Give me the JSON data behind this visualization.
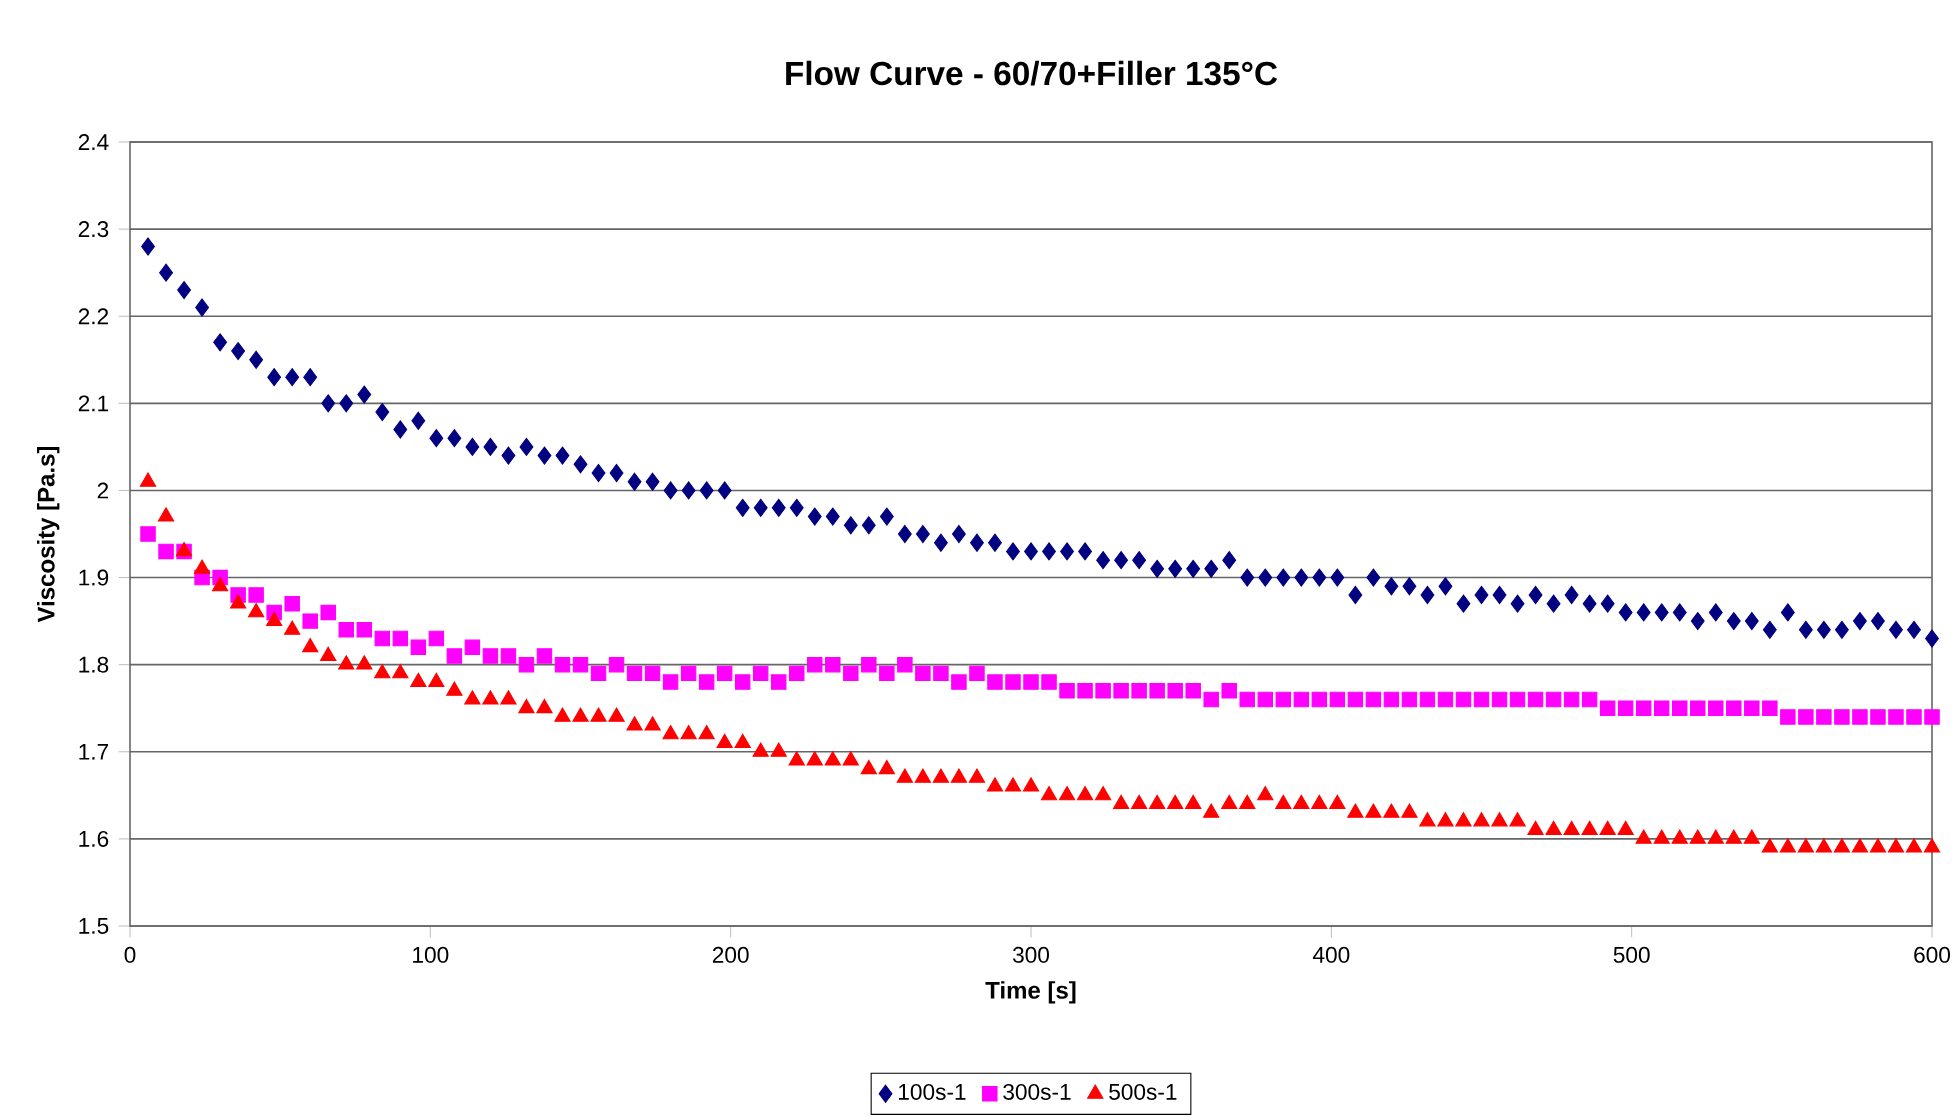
{
  "chart_data": {
    "type": "scatter",
    "title": "Flow Curve - 60/70+Filler 135°C",
    "xlabel": "Time [s]",
    "ylabel": "Viscosity [Pa.s]",
    "x": [
      6,
      12,
      18,
      24,
      30,
      36,
      42,
      48,
      54,
      60,
      66,
      72,
      78,
      84,
      90,
      96,
      102,
      108,
      114,
      120,
      126,
      132,
      138,
      144,
      150,
      156,
      162,
      168,
      174,
      180,
      186,
      192,
      198,
      204,
      210,
      216,
      222,
      228,
      234,
      240,
      246,
      252,
      258,
      264,
      270,
      276,
      282,
      288,
      294,
      300,
      306,
      312,
      318,
      324,
      330,
      336,
      342,
      348,
      354,
      360,
      366,
      372,
      378,
      384,
      390,
      396,
      402,
      408,
      414,
      420,
      426,
      432,
      438,
      444,
      450,
      456,
      462,
      468,
      474,
      480,
      486,
      492,
      498,
      504,
      510,
      516,
      522,
      528,
      534,
      540,
      546,
      552,
      558,
      564,
      570,
      576,
      582,
      588,
      594,
      600
    ],
    "series": [
      {
        "name": "100s-1",
        "color": "#000080",
        "marker": "diamond",
        "values": [
          2.28,
          2.25,
          2.23,
          2.21,
          2.17,
          2.16,
          2.15,
          2.13,
          2.13,
          2.13,
          2.1,
          2.1,
          2.11,
          2.09,
          2.07,
          2.08,
          2.06,
          2.06,
          2.05,
          2.05,
          2.04,
          2.05,
          2.04,
          2.04,
          2.03,
          2.02,
          2.02,
          2.01,
          2.01,
          2.0,
          2.0,
          2.0,
          2.0,
          1.98,
          1.98,
          1.98,
          1.98,
          1.97,
          1.97,
          1.96,
          1.96,
          1.97,
          1.95,
          1.95,
          1.94,
          1.95,
          1.94,
          1.94,
          1.93,
          1.93,
          1.93,
          1.93,
          1.93,
          1.92,
          1.92,
          1.92,
          1.91,
          1.91,
          1.91,
          1.91,
          1.92,
          1.9,
          1.9,
          1.9,
          1.9,
          1.9,
          1.9,
          1.88,
          1.9,
          1.89,
          1.89,
          1.88,
          1.89,
          1.87,
          1.88,
          1.88,
          1.87,
          1.88,
          1.87,
          1.88,
          1.87,
          1.87,
          1.86,
          1.86,
          1.86,
          1.86,
          1.85,
          1.86,
          1.85,
          1.85,
          1.84,
          1.86,
          1.84,
          1.84,
          1.84,
          1.85,
          1.85,
          1.84,
          1.84,
          1.83
        ]
      },
      {
        "name": "300s-1",
        "color": "#ff00ff",
        "marker": "square",
        "values": [
          1.95,
          1.93,
          1.93,
          1.9,
          1.9,
          1.88,
          1.88,
          1.86,
          1.87,
          1.85,
          1.86,
          1.84,
          1.84,
          1.83,
          1.83,
          1.82,
          1.83,
          1.81,
          1.82,
          1.81,
          1.81,
          1.8,
          1.81,
          1.8,
          1.8,
          1.79,
          1.8,
          1.79,
          1.79,
          1.78,
          1.79,
          1.78,
          1.79,
          1.78,
          1.79,
          1.78,
          1.79,
          1.8,
          1.8,
          1.79,
          1.8,
          1.79,
          1.8,
          1.79,
          1.79,
          1.78,
          1.79,
          1.78,
          1.78,
          1.78,
          1.78,
          1.77,
          1.77,
          1.77,
          1.77,
          1.77,
          1.77,
          1.77,
          1.77,
          1.76,
          1.77,
          1.76,
          1.76,
          1.76,
          1.76,
          1.76,
          1.76,
          1.76,
          1.76,
          1.76,
          1.76,
          1.76,
          1.76,
          1.76,
          1.76,
          1.76,
          1.76,
          1.76,
          1.76,
          1.76,
          1.76,
          1.75,
          1.75,
          1.75,
          1.75,
          1.75,
          1.75,
          1.75,
          1.75,
          1.75,
          1.75,
          1.74,
          1.74,
          1.74,
          1.74,
          1.74,
          1.74,
          1.74,
          1.74,
          1.74
        ]
      },
      {
        "name": "500s-1",
        "color": "#ff0000",
        "marker": "triangle",
        "values": [
          2.01,
          1.97,
          1.93,
          1.91,
          1.89,
          1.87,
          1.86,
          1.85,
          1.84,
          1.82,
          1.81,
          1.8,
          1.8,
          1.79,
          1.79,
          1.78,
          1.78,
          1.77,
          1.76,
          1.76,
          1.76,
          1.75,
          1.75,
          1.74,
          1.74,
          1.74,
          1.74,
          1.73,
          1.73,
          1.72,
          1.72,
          1.72,
          1.71,
          1.71,
          1.7,
          1.7,
          1.69,
          1.69,
          1.69,
          1.69,
          1.68,
          1.68,
          1.67,
          1.67,
          1.67,
          1.67,
          1.67,
          1.66,
          1.66,
          1.66,
          1.65,
          1.65,
          1.65,
          1.65,
          1.64,
          1.64,
          1.64,
          1.64,
          1.64,
          1.63,
          1.64,
          1.64,
          1.65,
          1.64,
          1.64,
          1.64,
          1.64,
          1.63,
          1.63,
          1.63,
          1.63,
          1.62,
          1.62,
          1.62,
          1.62,
          1.62,
          1.62,
          1.61,
          1.61,
          1.61,
          1.61,
          1.61,
          1.61,
          1.6,
          1.6,
          1.6,
          1.6,
          1.6,
          1.6,
          1.6,
          1.59,
          1.59,
          1.59,
          1.59,
          1.59,
          1.59,
          1.59,
          1.59,
          1.59,
          1.59
        ]
      }
    ],
    "xlim": [
      0,
      600
    ],
    "xticks": [
      0,
      100,
      200,
      300,
      400,
      500,
      600
    ],
    "ylim": [
      1.5,
      2.4
    ],
    "yticks": [
      1.5,
      1.6,
      1.7,
      1.8,
      1.9,
      2,
      2.1,
      2.2,
      2.3,
      2.4
    ],
    "grid": "y",
    "legend": "bottom"
  }
}
